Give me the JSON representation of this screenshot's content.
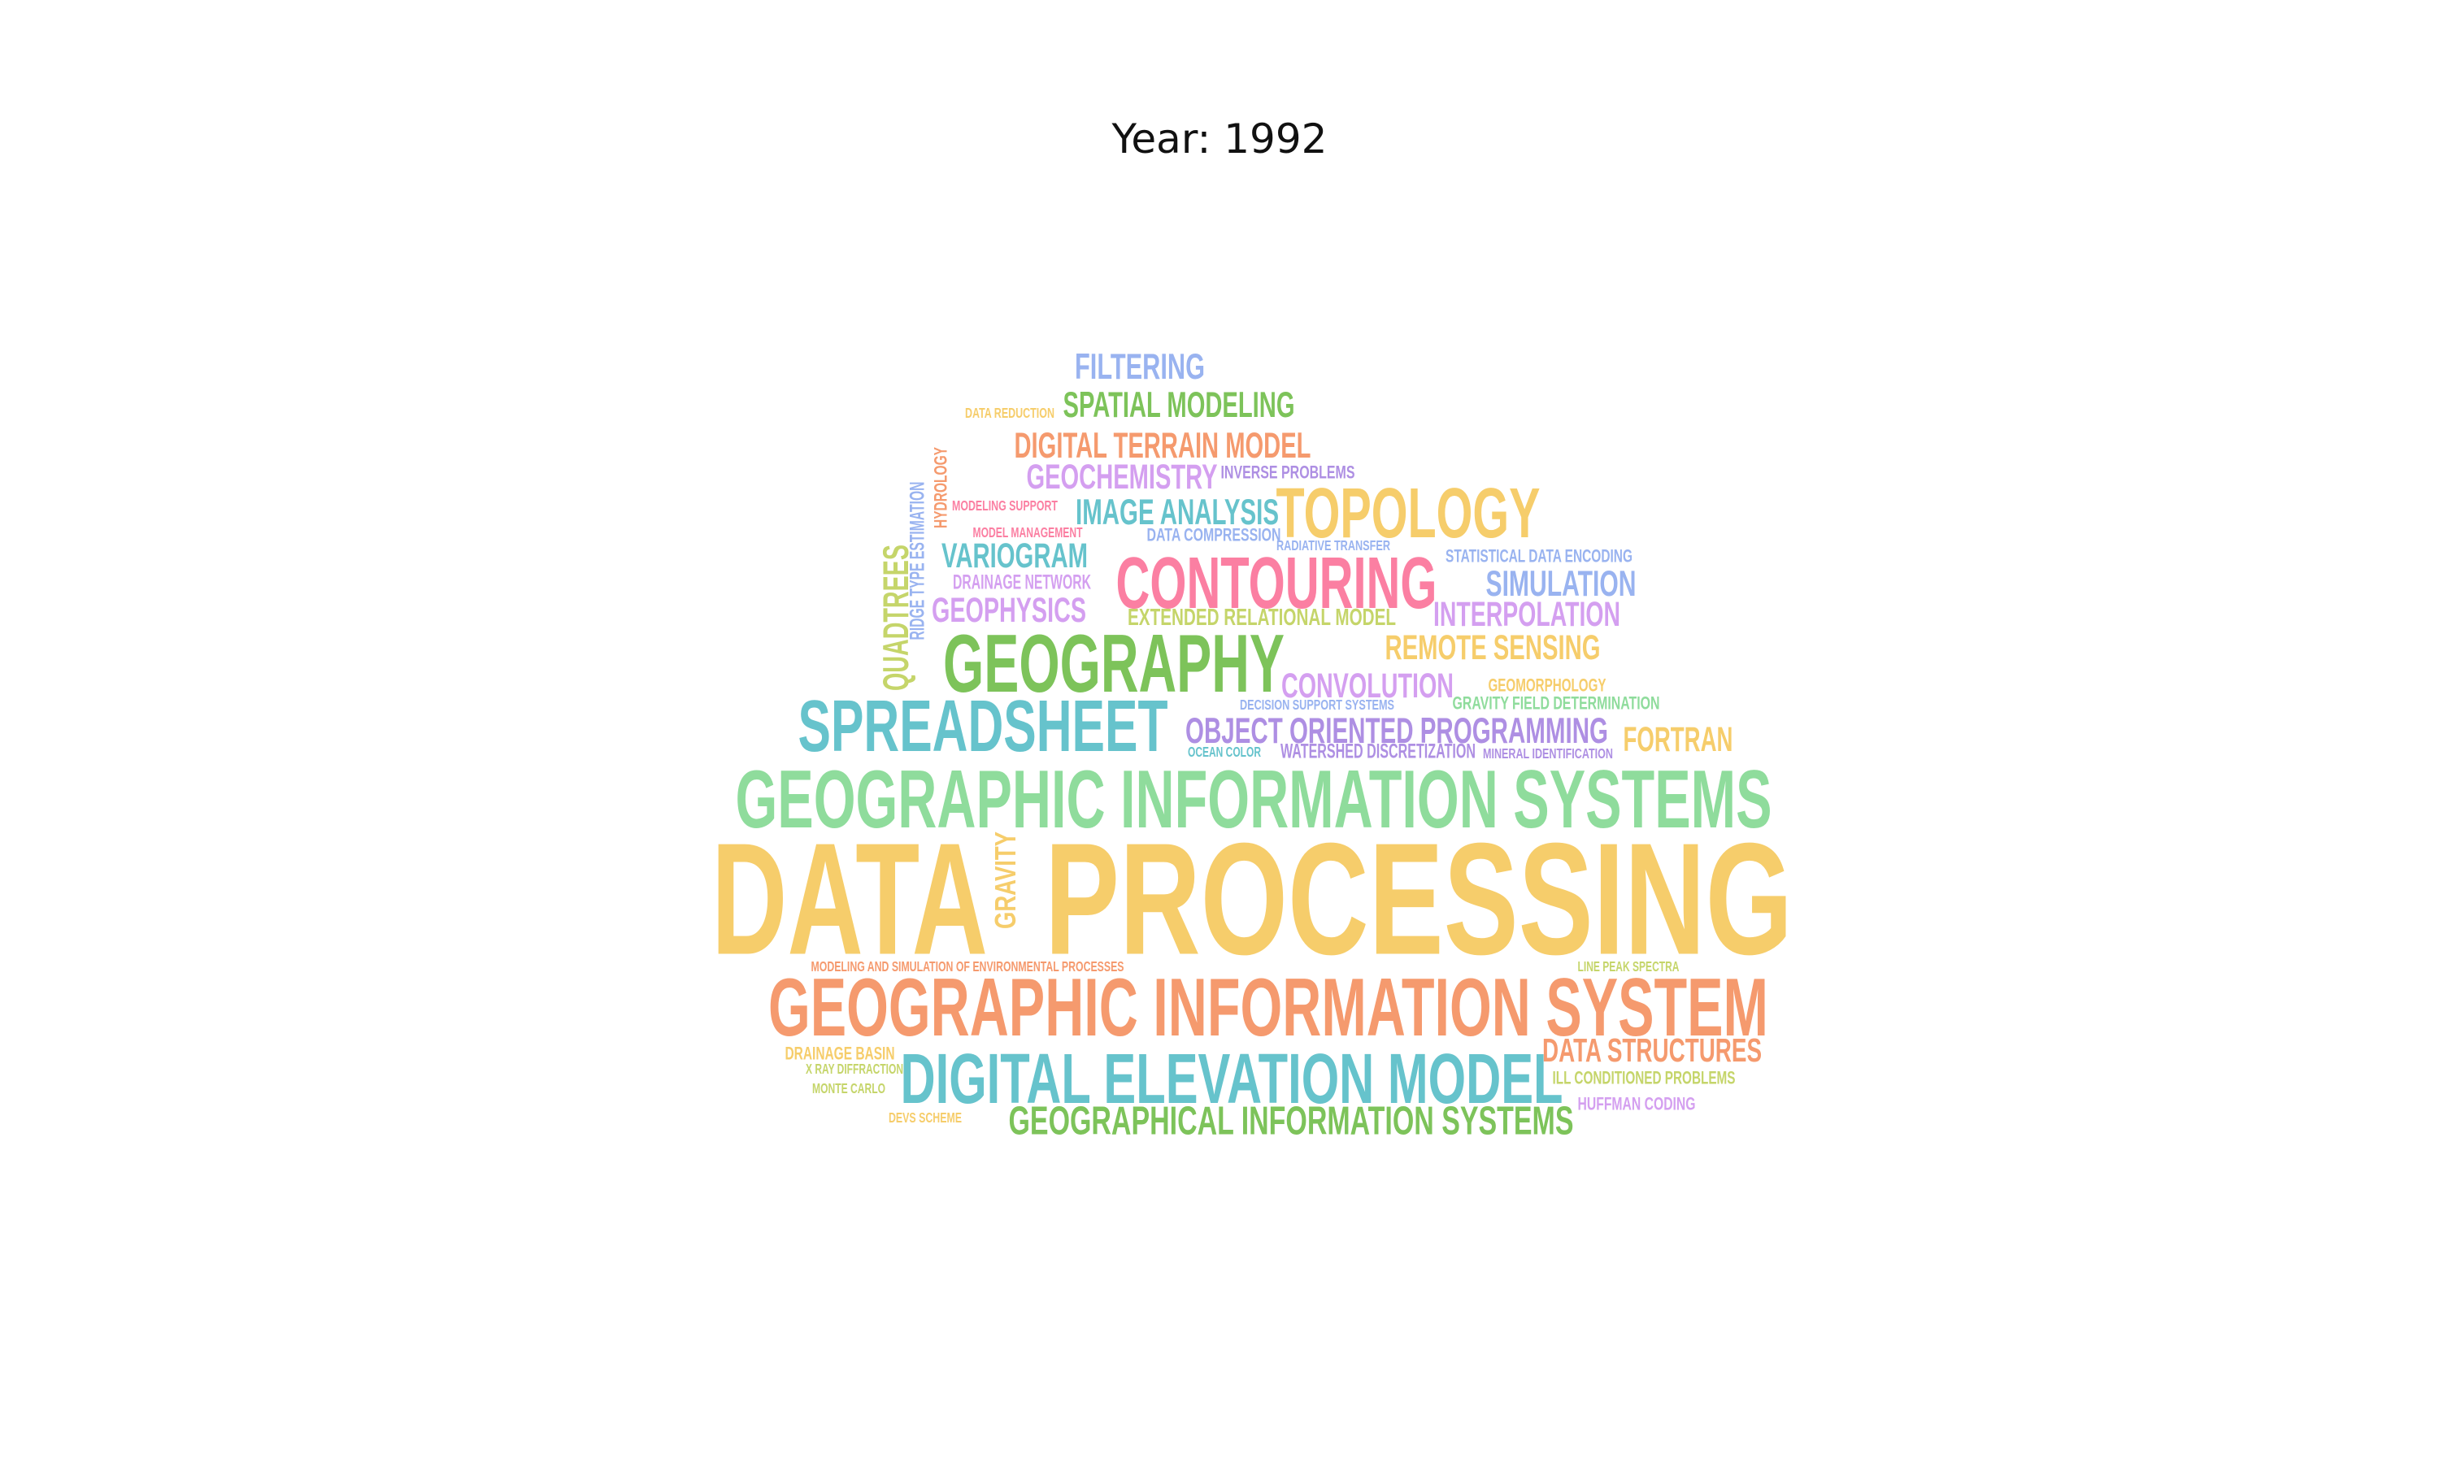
{
  "title": "Year: 1992",
  "words": [
    {
      "text": "DATA",
      "color": "#f6cd6b"
    },
    {
      "text": "PROCESSING",
      "color": "#f6cd6b"
    },
    {
      "text": "GEOGRAPHIC INFORMATION SYSTEMS",
      "color": "#8fdc9c"
    },
    {
      "text": "GEOGRAPHIC INFORMATION SYSTEM",
      "color": "#f59a6e"
    },
    {
      "text": "DIGITAL ELEVATION MODEL",
      "color": "#66c3cc"
    },
    {
      "text": "GEOGRAPHY",
      "color": "#7dc35a"
    },
    {
      "text": "SPREADSHEET",
      "color": "#66c3cc"
    },
    {
      "text": "CONTOURING",
      "color": "#fb7fa2"
    },
    {
      "text": "TOPOLOGY",
      "color": "#f6cd6b"
    },
    {
      "text": "GEOGRAPHICAL INFORMATION SYSTEMS",
      "color": "#7dc35a"
    },
    {
      "text": "OBJECT ORIENTED PROGRAMMING",
      "color": "#ae8fe3"
    },
    {
      "text": "DIGITAL TERRAIN MODEL",
      "color": "#f59a6e"
    },
    {
      "text": "SPATIAL MODELING",
      "color": "#7dc35a"
    },
    {
      "text": "FILTERING",
      "color": "#99b3f0"
    },
    {
      "text": "GEOCHEMISTRY",
      "color": "#d49ff0"
    },
    {
      "text": "IMAGE ANALYSIS",
      "color": "#66c3cc"
    },
    {
      "text": "VARIOGRAM",
      "color": "#66c3cc"
    },
    {
      "text": "GEOPHYSICS",
      "color": "#d49ff0"
    },
    {
      "text": "SIMULATION",
      "color": "#99b3f0"
    },
    {
      "text": "INTERPOLATION",
      "color": "#d49ff0"
    },
    {
      "text": "REMOTE SENSING",
      "color": "#f6cd6b"
    },
    {
      "text": "CONVOLUTION",
      "color": "#d49ff0"
    },
    {
      "text": "FORTRAN",
      "color": "#f6cd6b"
    },
    {
      "text": "DATA STRUCTURES",
      "color": "#f59a6e"
    },
    {
      "text": "QUADTREES",
      "color": "#c5d56a"
    },
    {
      "text": "GRAVITY",
      "color": "#f6cd6b"
    },
    {
      "text": "EXTENDED RELATIONAL MODEL",
      "color": "#c5d56a"
    },
    {
      "text": "WATERSHED DISCRETIZATION",
      "color": "#ae8fe3"
    },
    {
      "text": "STATISTICAL DATA ENCODING",
      "color": "#99b3f0"
    },
    {
      "text": "GEOMORPHOLOGY",
      "color": "#f6cd6b"
    },
    {
      "text": "GRAVITY FIELD DETERMINATION",
      "color": "#8fdc9c"
    },
    {
      "text": "DECISION SUPPORT SYSTEMS",
      "color": "#99b3f0"
    },
    {
      "text": "OCEAN COLOR",
      "color": "#66c3cc"
    },
    {
      "text": "MINERAL IDENTIFICATION",
      "color": "#ae8fe3"
    },
    {
      "text": "DRAINAGE NETWORK",
      "color": "#d49ff0"
    },
    {
      "text": "INVERSE PROBLEMS",
      "color": "#ae8fe3"
    },
    {
      "text": "DATA COMPRESSION",
      "color": "#99b3f0"
    },
    {
      "text": "RADIATIVE TRANSFER",
      "color": "#99b3f0"
    },
    {
      "text": "HYDROLOGY",
      "color": "#f59a6e"
    },
    {
      "text": "RIDGE TYPE ESTIMATION",
      "color": "#99b3f0"
    },
    {
      "text": "MODELING SUPPORT",
      "color": "#fb7fa2"
    },
    {
      "text": "MODEL MANAGEMENT",
      "color": "#fb7fa2"
    },
    {
      "text": "DATA REDUCTION",
      "color": "#f6cd6b"
    },
    {
      "text": "MODELING AND SIMULATION OF ENVIRONMENTAL PROCESSES",
      "color": "#f59a6e"
    },
    {
      "text": "LINE PEAK SPECTRA",
      "color": "#c5d56a"
    },
    {
      "text": "DRAINAGE BASIN",
      "color": "#f6cd6b"
    },
    {
      "text": "X RAY DIFFRACTION",
      "color": "#c5d56a"
    },
    {
      "text": "MONTE CARLO",
      "color": "#c5d56a"
    },
    {
      "text": "DEVS SCHEME",
      "color": "#f6cd6b"
    },
    {
      "text": "ILL CONDITIONED PROBLEMS",
      "color": "#c5d56a"
    },
    {
      "text": "HUFFMAN CODING",
      "color": "#d49ff0"
    }
  ]
}
